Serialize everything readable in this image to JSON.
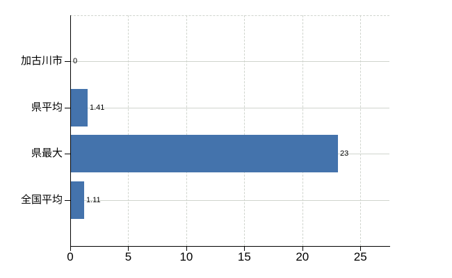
{
  "chart_data": {
    "type": "bar",
    "orientation": "horizontal",
    "title": "",
    "xlabel": "",
    "ylabel": "",
    "categories": [
      "加古川市",
      "県平均",
      "県最大",
      "全国平均"
    ],
    "values": [
      0,
      1.41,
      23,
      1.11
    ],
    "value_labels": [
      "0",
      "1.41",
      "23",
      "1.11"
    ],
    "xticks": [
      "0",
      "5",
      "10",
      "15",
      "20",
      "25"
    ],
    "xtick_values": [
      0,
      5,
      10,
      15,
      20,
      25
    ],
    "xlim": [
      0,
      27.5
    ],
    "grid": "on",
    "legend": "none",
    "colors": {
      "bar": "#4473ac",
      "gridline": "#cfd4cd",
      "axis": "#000000",
      "text": "#000000",
      "background": "#ffffff"
    }
  }
}
